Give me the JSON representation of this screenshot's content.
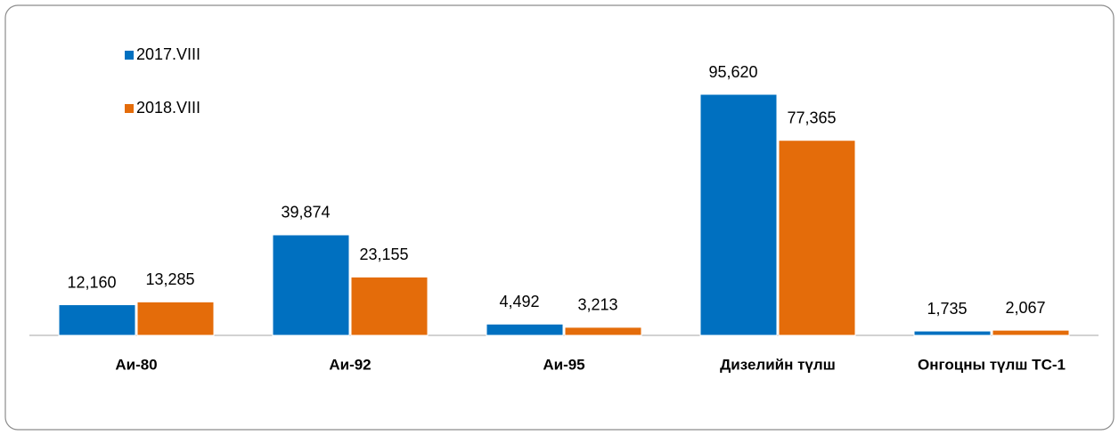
{
  "chart_data": {
    "type": "bar",
    "categories": [
      "Аи-80",
      "Аи-92",
      "Аи-95",
      "Дизелийн түлш",
      "Онгоцны түлш ТС-1"
    ],
    "series": [
      {
        "name": "2017.VIII",
        "color": "#0070c0",
        "values": [
          12160,
          39874,
          4492,
          95620,
          1735
        ],
        "value_labels": [
          "12,160",
          "39,874",
          "4,492",
          "95,620",
          "1,735"
        ]
      },
      {
        "name": "2018.VIII",
        "color": "#e46c0a",
        "values": [
          13285,
          23155,
          3213,
          77365,
          2067
        ],
        "value_labels": [
          "13,285",
          "23,155",
          "3,213",
          "77,365",
          "2,067"
        ]
      }
    ],
    "legend": "top-left"
  }
}
